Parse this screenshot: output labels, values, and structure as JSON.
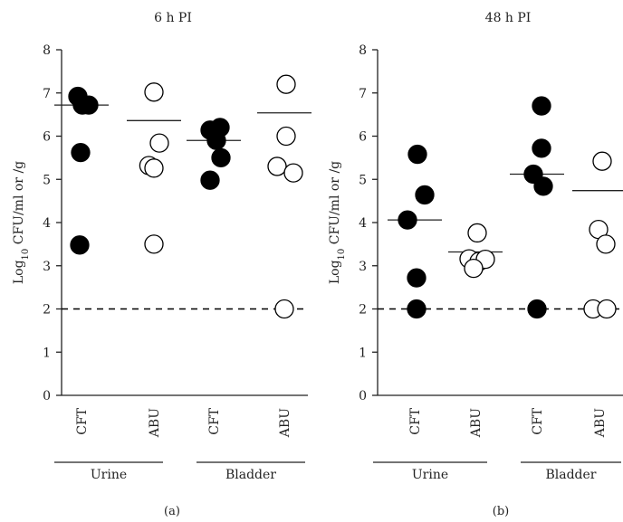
{
  "colors": {
    "axis": "#222222",
    "filled": "#000000",
    "open_fill": "#ffffff",
    "ref_line": "#000000"
  },
  "chart_data": [
    {
      "type": "scatter",
      "title": "6 h PI",
      "panel_label": "(a)",
      "ylabel": "Log10 CFU/ml or /g",
      "ylim": [
        0,
        8
      ],
      "yticks": [
        "0",
        "1",
        "2",
        "3",
        "4",
        "5",
        "6",
        "7",
        "8"
      ],
      "categories": [
        "CFT",
        "ABU",
        "CFT",
        "ABU"
      ],
      "groups": [
        "Urine",
        "Bladder"
      ],
      "detection_limit": 2,
      "columns": [
        {
          "category": "CFT",
          "group": "Urine",
          "marker": "filled",
          "mean": 6.72,
          "points": [
            {
              "y": 6.92,
              "dx": -0.2
            },
            {
              "y": 6.72,
              "dx": 0.05
            },
            {
              "y": 6.72,
              "dx": 0.4
            },
            {
              "y": 5.62,
              "dx": -0.05
            },
            {
              "y": 3.48,
              "dx": -0.1
            }
          ]
        },
        {
          "category": "ABU",
          "group": "Urine",
          "marker": "open",
          "mean": 6.36,
          "points": [
            {
              "y": 7.02,
              "dx": 0.0
            },
            {
              "y": 5.84,
              "dx": 0.3
            },
            {
              "y": 5.32,
              "dx": -0.28
            },
            {
              "y": 5.26,
              "dx": 0.0
            },
            {
              "y": 3.5,
              "dx": 0.0
            }
          ]
        },
        {
          "category": "CFT",
          "group": "Bladder",
          "marker": "filled",
          "mean": 5.9,
          "points": [
            {
              "y": 6.14,
              "dx": -0.2
            },
            {
              "y": 6.2,
              "dx": 0.35
            },
            {
              "y": 5.9,
              "dx": 0.15
            },
            {
              "y": 5.5,
              "dx": 0.4
            },
            {
              "y": 4.98,
              "dx": -0.2
            }
          ]
        },
        {
          "category": "ABU",
          "group": "Bladder",
          "marker": "open",
          "mean": 6.54,
          "points": [
            {
              "y": 7.2,
              "dx": 0.1
            },
            {
              "y": 6.0,
              "dx": 0.1
            },
            {
              "y": 5.3,
              "dx": -0.4
            },
            {
              "y": 5.15,
              "dx": 0.5
            },
            {
              "y": 2.0,
              "dx": 0.0
            }
          ]
        }
      ]
    },
    {
      "type": "scatter",
      "title": "48 h PI",
      "panel_label": "(b)",
      "ylabel": "Log10 CFU/ml or /g",
      "ylim": [
        0,
        8
      ],
      "yticks": [
        "0",
        "1",
        "2",
        "3",
        "4",
        "5",
        "6",
        "7",
        "8"
      ],
      "categories": [
        "CFT",
        "ABU",
        "CFT",
        "ABU"
      ],
      "groups": [
        "Urine",
        "Bladder"
      ],
      "detection_limit": 2,
      "columns": [
        {
          "category": "CFT",
          "group": "Urine",
          "marker": "filled",
          "mean": 4.06,
          "points": [
            {
              "y": 5.58,
              "dx": 0.15
            },
            {
              "y": 4.64,
              "dx": 0.55
            },
            {
              "y": 4.06,
              "dx": -0.4
            },
            {
              "y": 2.72,
              "dx": 0.1
            },
            {
              "y": 2.0,
              "dx": 0.1
            }
          ]
        },
        {
          "category": "ABU",
          "group": "Urine",
          "marker": "open",
          "mean": 3.32,
          "points": [
            {
              "y": 3.76,
              "dx": 0.1
            },
            {
              "y": 3.16,
              "dx": -0.35
            },
            {
              "y": 3.1,
              "dx": 0.2
            },
            {
              "y": 3.15,
              "dx": 0.55
            },
            {
              "y": 2.94,
              "dx": -0.1
            }
          ]
        },
        {
          "category": "CFT",
          "group": "Bladder",
          "marker": "filled",
          "mean": 5.12,
          "points": [
            {
              "y": 6.7,
              "dx": 0.25
            },
            {
              "y": 5.72,
              "dx": 0.25
            },
            {
              "y": 5.12,
              "dx": -0.2
            },
            {
              "y": 4.84,
              "dx": 0.35
            },
            {
              "y": 2.0,
              "dx": 0.0
            }
          ]
        },
        {
          "category": "ABU",
          "group": "Bladder",
          "marker": "open",
          "mean": 4.74,
          "points": [
            {
              "y": 5.42,
              "dx": 0.15
            },
            {
              "y": 3.84,
              "dx": -0.05
            },
            {
              "y": 3.5,
              "dx": 0.35
            },
            {
              "y": 2.0,
              "dx": -0.35
            },
            {
              "y": 2.0,
              "dx": 0.4
            }
          ]
        }
      ]
    }
  ]
}
